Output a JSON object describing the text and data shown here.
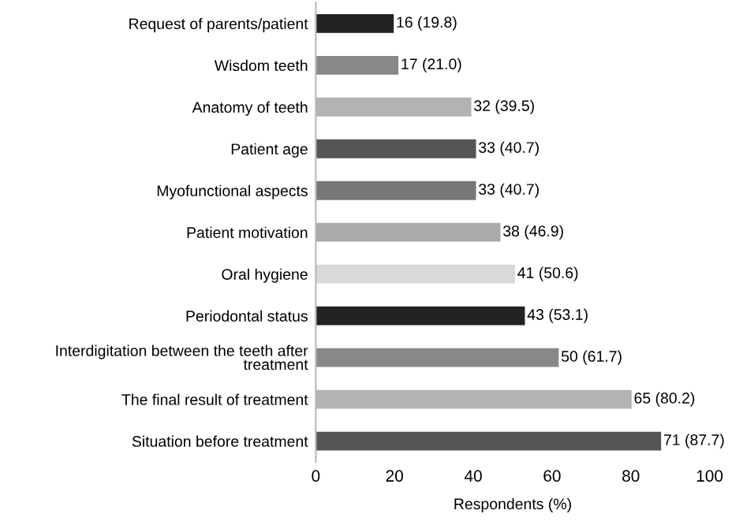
{
  "chart_data": {
    "type": "bar",
    "orientation": "horizontal",
    "xlabel": "Respondents (%)",
    "categories": [
      "Request of parents/patient",
      "Wisdom teeth",
      "Anatomy of teeth",
      "Patient age",
      "Myofunctional aspects",
      "Patient motivation",
      "Oral hygiene",
      "Periodontal status",
      "Interdigitation between the teeth after\ntreatment",
      "The final result of treatment",
      "Situation before treatment"
    ],
    "values": [
      19.8,
      21.0,
      39.5,
      40.7,
      40.7,
      46.9,
      50.6,
      53.1,
      61.7,
      80.2,
      87.7
    ],
    "value_labels": [
      "16 (19.8)",
      "17 (21.0)",
      "32 (39.5)",
      "33 (40.7)",
      "33 (40.7)",
      "38 (46.9)",
      "41 (50.6)",
      "43 (53.1)",
      "50 (61.7)",
      "65 (80.2)",
      "71 (87.7)"
    ],
    "colors": [
      "#222222",
      "#888888",
      "#b3b3b3",
      "#555555",
      "#777777",
      "#aaaaaa",
      "#d9d9d9",
      "#222222",
      "#888888",
      "#b3b3b3",
      "#555555"
    ],
    "xlim": [
      0,
      100
    ],
    "xticks": [
      0,
      20,
      40,
      60,
      80,
      100
    ],
    "grid": false
  }
}
